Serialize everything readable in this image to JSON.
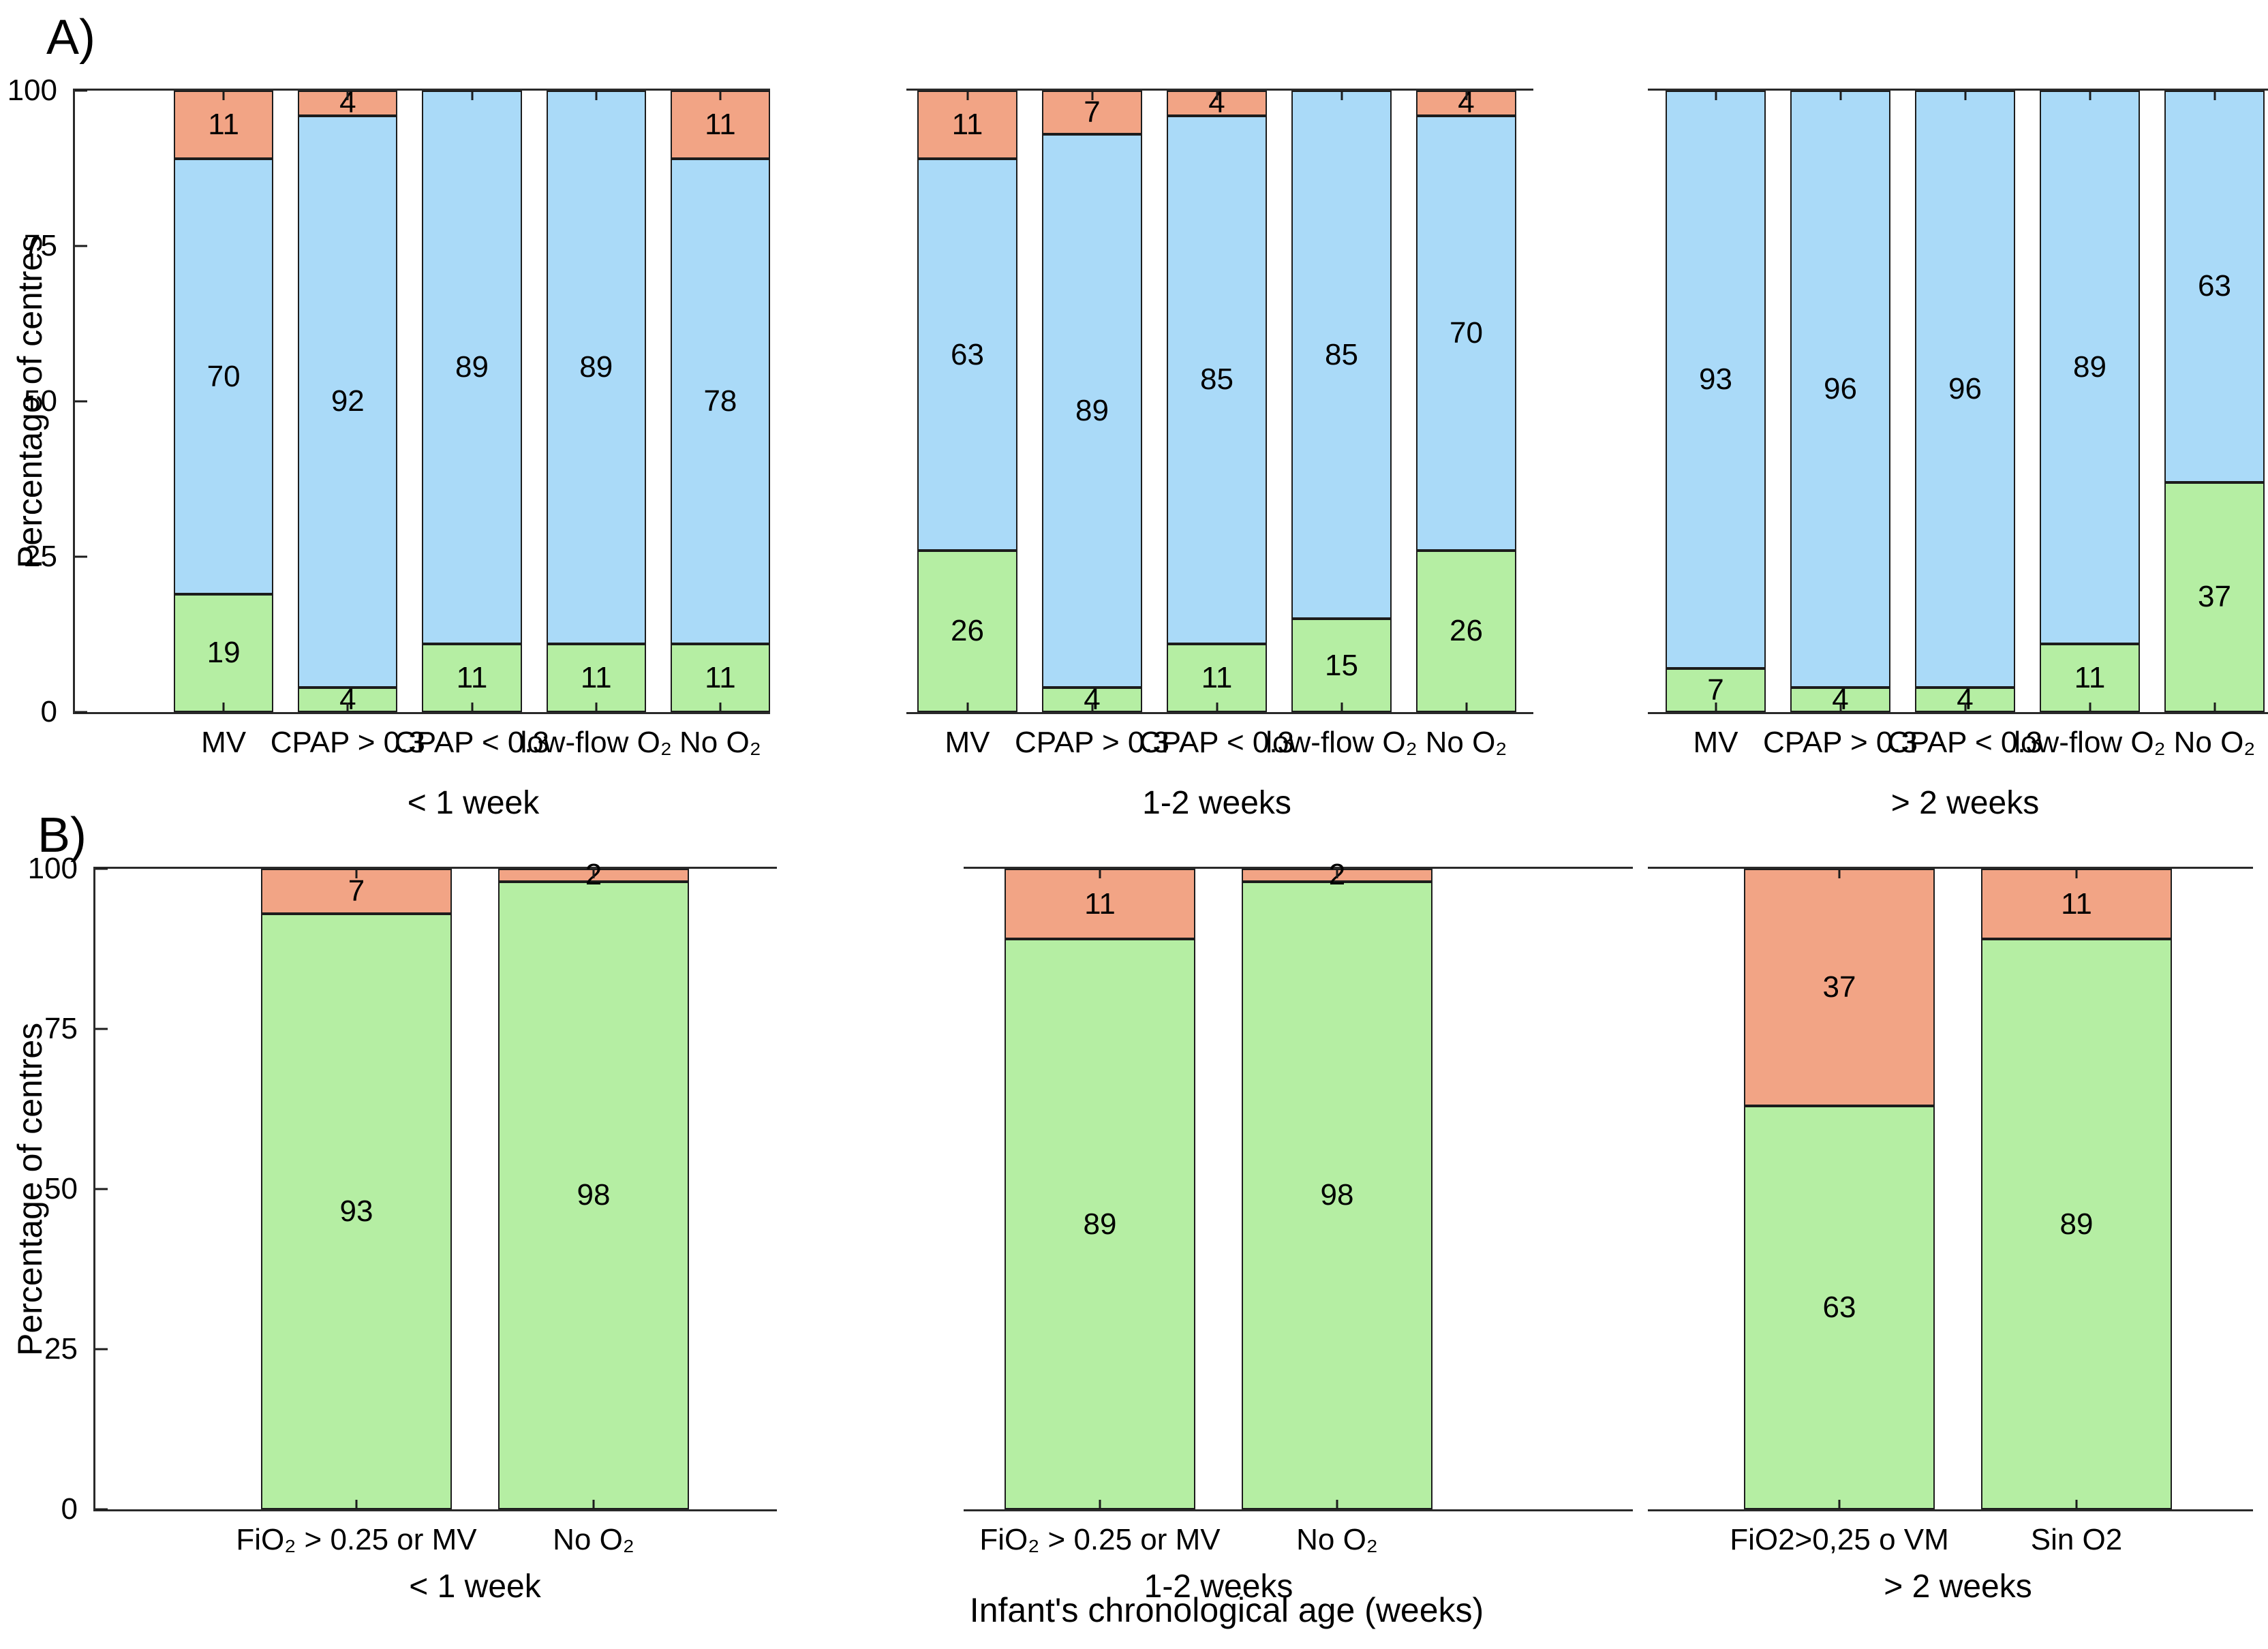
{
  "figure": {
    "panel_a_label": "A)",
    "panel_b_label": "B)",
    "y_axis_label": "Percentage of centres",
    "x_axis_label": "Infant's chronological age (weeks)"
  },
  "axis": {
    "y_ticks": [
      0,
      25,
      50,
      75,
      100
    ]
  },
  "colors": {
    "green": "#b5eea3",
    "blue": "#aadaf8",
    "orange": "#f2a485",
    "segment_border": "#1c1c1c",
    "spine": "#2a2a2a"
  },
  "chart_data": [
    {
      "panel": "A",
      "type": "bar",
      "stacked": true,
      "group": "< 1 week",
      "ylabel": "Percentage of centres",
      "ylim": [
        0,
        100
      ],
      "grid": false,
      "legend": "none",
      "categories": [
        "MV",
        "CPAP > 0.3",
        "CPAP < 0.3",
        "low-flow O₂",
        "No O₂"
      ],
      "series": [
        {
          "name": "green",
          "color_key": "green",
          "values": [
            19,
            4,
            11,
            11,
            11
          ]
        },
        {
          "name": "blue",
          "color_key": "blue",
          "values": [
            70,
            92,
            89,
            89,
            78
          ]
        },
        {
          "name": "orange",
          "color_key": "orange",
          "values": [
            11,
            4,
            0,
            0,
            11
          ]
        }
      ]
    },
    {
      "panel": "A",
      "type": "bar",
      "stacked": true,
      "group": "1-2 weeks",
      "ylabel": "Percentage of centres",
      "ylim": [
        0,
        100
      ],
      "grid": false,
      "legend": "none",
      "categories": [
        "MV",
        "CPAP > 0.3",
        "CPAP < 0.3",
        "low-flow O₂",
        "No O₂"
      ],
      "series": [
        {
          "name": "green",
          "color_key": "green",
          "values": [
            26,
            4,
            11,
            15,
            26
          ]
        },
        {
          "name": "blue",
          "color_key": "blue",
          "values": [
            63,
            89,
            85,
            85,
            70
          ]
        },
        {
          "name": "orange",
          "color_key": "orange",
          "values": [
            11,
            7,
            4,
            0,
            4
          ]
        }
      ]
    },
    {
      "panel": "A",
      "type": "bar",
      "stacked": true,
      "group": "> 2 weeks",
      "ylabel": "Percentage of centres",
      "ylim": [
        0,
        100
      ],
      "grid": false,
      "legend": "none",
      "categories": [
        "MV",
        "CPAP > 0.3",
        "CPAP < 0.3",
        "low-flow O₂",
        "No O₂"
      ],
      "series": [
        {
          "name": "green",
          "color_key": "green",
          "values": [
            7,
            4,
            4,
            11,
            37
          ]
        },
        {
          "name": "blue",
          "color_key": "blue",
          "values": [
            93,
            96,
            96,
            89,
            63
          ]
        },
        {
          "name": "orange",
          "color_key": "orange",
          "values": [
            0,
            0,
            0,
            0,
            0
          ]
        }
      ]
    },
    {
      "panel": "B",
      "type": "bar",
      "stacked": true,
      "group": "< 1 week",
      "ylabel": "Percentage of centres",
      "ylim": [
        0,
        100
      ],
      "grid": false,
      "legend": "none",
      "categories": [
        "FiO₂ > 0.25 or MV",
        "No O₂"
      ],
      "series": [
        {
          "name": "green",
          "color_key": "green",
          "values": [
            93,
            98
          ]
        },
        {
          "name": "orange",
          "color_key": "orange",
          "values": [
            7,
            2
          ]
        }
      ]
    },
    {
      "panel": "B",
      "type": "bar",
      "stacked": true,
      "group": "1-2 weeks",
      "ylabel": "Percentage of centres",
      "ylim": [
        0,
        100
      ],
      "grid": false,
      "legend": "none",
      "categories": [
        "FiO₂ > 0.25 or MV",
        "No O₂"
      ],
      "series": [
        {
          "name": "green",
          "color_key": "green",
          "values": [
            89,
            98
          ]
        },
        {
          "name": "orange",
          "color_key": "orange",
          "values": [
            11,
            2
          ]
        }
      ]
    },
    {
      "panel": "B",
      "type": "bar",
      "stacked": true,
      "group": "> 2 weeks",
      "ylabel": "Percentage of centres",
      "ylim": [
        0,
        100
      ],
      "grid": false,
      "legend": "none",
      "categories": [
        "FiO2>0,25 o VM",
        "Sin O2"
      ],
      "series": [
        {
          "name": "green",
          "color_key": "green",
          "values": [
            63,
            89
          ]
        },
        {
          "name": "orange",
          "color_key": "orange",
          "values": [
            37,
            11
          ]
        }
      ]
    }
  ]
}
